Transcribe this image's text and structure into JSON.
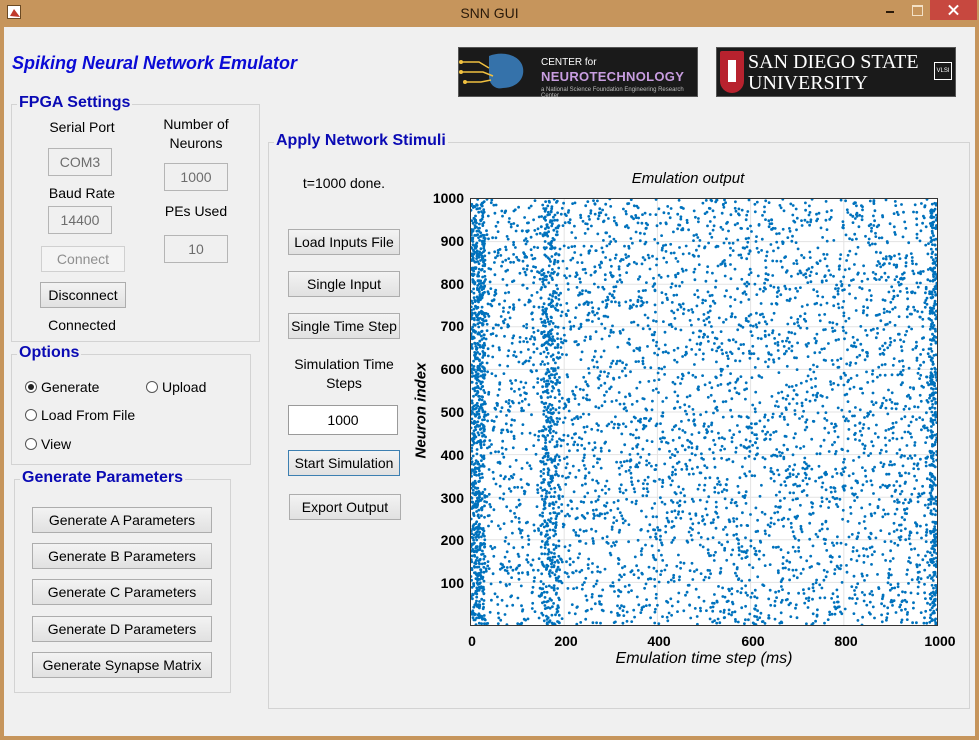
{
  "window": {
    "title": "SNN GUI"
  },
  "app": {
    "title": "Spiking Neural Network Emulator"
  },
  "logos": {
    "cnt": {
      "line1": "CENTER for",
      "line2": "NEUROTECHNOLOGY",
      "line3": "a National Science Foundation Engineering Research Center"
    },
    "sdsu": {
      "line1": "SAN DIEGO STATE",
      "line2": "UNIVERSITY",
      "badge": "VLSI"
    }
  },
  "fpga": {
    "title": "FPGA Settings",
    "serial_port_label": "Serial Port",
    "serial_port_value": "COM3",
    "baud_rate_label": "Baud Rate",
    "baud_rate_value": "14400",
    "neurons_label_1": "Number of",
    "neurons_label_2": "Neurons",
    "neurons_value": "1000",
    "pes_label": "PEs Used",
    "pes_value": "10",
    "connect_label": "Connect",
    "disconnect_label": "Disconnect",
    "status": "Connected"
  },
  "options": {
    "title": "Options",
    "generate": "Generate",
    "upload": "Upload",
    "load_from_file": "Load From File",
    "view": "View",
    "selected": "generate"
  },
  "generate_params": {
    "title": "Generate Parameters",
    "buttons": [
      "Generate A Parameters",
      "Generate B Parameters",
      "Generate C Parameters",
      "Generate D Parameters",
      "Generate Synapse Matrix"
    ]
  },
  "stimuli": {
    "title": "Apply Network Stimuli",
    "status": "t=1000 done.",
    "load_inputs": "Load Inputs File",
    "single_input": "Single Input",
    "single_time_step": "Single Time Step",
    "sim_steps_label_1": "Simulation Time",
    "sim_steps_label_2": "Steps",
    "sim_steps_value": "1000",
    "start_simulation": "Start Simulation",
    "export_output": "Export Output"
  },
  "colors": {
    "spike": "#0072bd",
    "heading": "#0a0ab4",
    "title": "#0a0ad6"
  },
  "chart_data": {
    "type": "scatter",
    "title": "Emulation output",
    "xlabel": "Emulation time step (ms)",
    "ylabel": "Neuron index",
    "xlim": [
      0,
      1000
    ],
    "ylim": [
      0,
      1000
    ],
    "xticks": [
      "0",
      "200",
      "400",
      "600",
      "800",
      "1000"
    ],
    "yticks": [
      "100",
      "200",
      "300",
      "400",
      "500",
      "600",
      "700",
      "800",
      "900",
      "1000"
    ],
    "grid": true,
    "series": [
      {
        "marker": "dot",
        "description_points": "approximately 6000 spike events spread across all neurons 1-1000 and time steps 0-1000, with dense vertical bands near t=0-30, t=150-190 and t=990-1000"
      }
    ],
    "sample_points": [
      [
        5,
        980
      ],
      [
        12,
        860
      ],
      [
        20,
        720
      ],
      [
        8,
        640
      ],
      [
        25,
        560
      ],
      [
        15,
        430
      ],
      [
        30,
        300
      ],
      [
        10,
        180
      ],
      [
        22,
        90
      ],
      [
        18,
        40
      ],
      [
        160,
        950
      ],
      [
        170,
        820
      ],
      [
        175,
        660
      ],
      [
        165,
        510
      ],
      [
        180,
        390
      ],
      [
        172,
        250
      ],
      [
        168,
        120
      ],
      [
        300,
        900
      ],
      [
        320,
        620
      ],
      [
        350,
        320
      ],
      [
        410,
        880
      ],
      [
        420,
        140
      ],
      [
        520,
        760
      ],
      [
        560,
        430
      ],
      [
        610,
        970
      ],
      [
        640,
        210
      ],
      [
        700,
        540
      ],
      [
        760,
        820
      ],
      [
        800,
        360
      ],
      [
        850,
        680
      ],
      [
        900,
        150
      ],
      [
        995,
        990
      ],
      [
        996,
        760
      ],
      [
        997,
        520
      ],
      [
        998,
        300
      ],
      [
        999,
        80
      ]
    ]
  }
}
